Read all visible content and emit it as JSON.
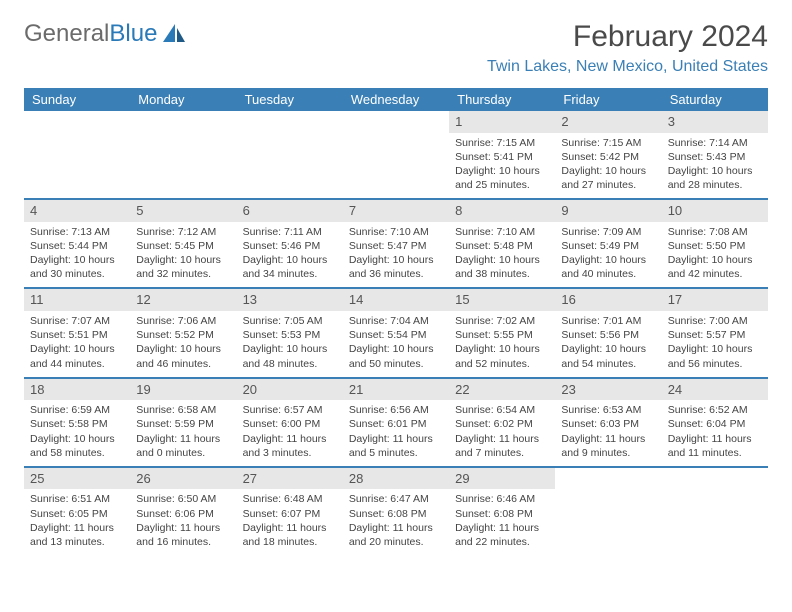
{
  "logo": {
    "text_gray": "General",
    "text_blue": "Blue"
  },
  "title": "February 2024",
  "location": "Twin Lakes, New Mexico, United States",
  "header_bg": "#3a7fb5",
  "border_color": "#3a7fb5",
  "daynum_bg": "#e7e7e7",
  "weekdays": [
    "Sunday",
    "Monday",
    "Tuesday",
    "Wednesday",
    "Thursday",
    "Friday",
    "Saturday"
  ],
  "weeks": [
    [
      {
        "n": "",
        "lines": []
      },
      {
        "n": "",
        "lines": []
      },
      {
        "n": "",
        "lines": []
      },
      {
        "n": "",
        "lines": []
      },
      {
        "n": "1",
        "lines": [
          "Sunrise: 7:15 AM",
          "Sunset: 5:41 PM",
          "Daylight: 10 hours and 25 minutes."
        ]
      },
      {
        "n": "2",
        "lines": [
          "Sunrise: 7:15 AM",
          "Sunset: 5:42 PM",
          "Daylight: 10 hours and 27 minutes."
        ]
      },
      {
        "n": "3",
        "lines": [
          "Sunrise: 7:14 AM",
          "Sunset: 5:43 PM",
          "Daylight: 10 hours and 28 minutes."
        ]
      }
    ],
    [
      {
        "n": "4",
        "lines": [
          "Sunrise: 7:13 AM",
          "Sunset: 5:44 PM",
          "Daylight: 10 hours and 30 minutes."
        ]
      },
      {
        "n": "5",
        "lines": [
          "Sunrise: 7:12 AM",
          "Sunset: 5:45 PM",
          "Daylight: 10 hours and 32 minutes."
        ]
      },
      {
        "n": "6",
        "lines": [
          "Sunrise: 7:11 AM",
          "Sunset: 5:46 PM",
          "Daylight: 10 hours and 34 minutes."
        ]
      },
      {
        "n": "7",
        "lines": [
          "Sunrise: 7:10 AM",
          "Sunset: 5:47 PM",
          "Daylight: 10 hours and 36 minutes."
        ]
      },
      {
        "n": "8",
        "lines": [
          "Sunrise: 7:10 AM",
          "Sunset: 5:48 PM",
          "Daylight: 10 hours and 38 minutes."
        ]
      },
      {
        "n": "9",
        "lines": [
          "Sunrise: 7:09 AM",
          "Sunset: 5:49 PM",
          "Daylight: 10 hours and 40 minutes."
        ]
      },
      {
        "n": "10",
        "lines": [
          "Sunrise: 7:08 AM",
          "Sunset: 5:50 PM",
          "Daylight: 10 hours and 42 minutes."
        ]
      }
    ],
    [
      {
        "n": "11",
        "lines": [
          "Sunrise: 7:07 AM",
          "Sunset: 5:51 PM",
          "Daylight: 10 hours and 44 minutes."
        ]
      },
      {
        "n": "12",
        "lines": [
          "Sunrise: 7:06 AM",
          "Sunset: 5:52 PM",
          "Daylight: 10 hours and 46 minutes."
        ]
      },
      {
        "n": "13",
        "lines": [
          "Sunrise: 7:05 AM",
          "Sunset: 5:53 PM",
          "Daylight: 10 hours and 48 minutes."
        ]
      },
      {
        "n": "14",
        "lines": [
          "Sunrise: 7:04 AM",
          "Sunset: 5:54 PM",
          "Daylight: 10 hours and 50 minutes."
        ]
      },
      {
        "n": "15",
        "lines": [
          "Sunrise: 7:02 AM",
          "Sunset: 5:55 PM",
          "Daylight: 10 hours and 52 minutes."
        ]
      },
      {
        "n": "16",
        "lines": [
          "Sunrise: 7:01 AM",
          "Sunset: 5:56 PM",
          "Daylight: 10 hours and 54 minutes."
        ]
      },
      {
        "n": "17",
        "lines": [
          "Sunrise: 7:00 AM",
          "Sunset: 5:57 PM",
          "Daylight: 10 hours and 56 minutes."
        ]
      }
    ],
    [
      {
        "n": "18",
        "lines": [
          "Sunrise: 6:59 AM",
          "Sunset: 5:58 PM",
          "Daylight: 10 hours and 58 minutes."
        ]
      },
      {
        "n": "19",
        "lines": [
          "Sunrise: 6:58 AM",
          "Sunset: 5:59 PM",
          "Daylight: 11 hours and 0 minutes."
        ]
      },
      {
        "n": "20",
        "lines": [
          "Sunrise: 6:57 AM",
          "Sunset: 6:00 PM",
          "Daylight: 11 hours and 3 minutes."
        ]
      },
      {
        "n": "21",
        "lines": [
          "Sunrise: 6:56 AM",
          "Sunset: 6:01 PM",
          "Daylight: 11 hours and 5 minutes."
        ]
      },
      {
        "n": "22",
        "lines": [
          "Sunrise: 6:54 AM",
          "Sunset: 6:02 PM",
          "Daylight: 11 hours and 7 minutes."
        ]
      },
      {
        "n": "23",
        "lines": [
          "Sunrise: 6:53 AM",
          "Sunset: 6:03 PM",
          "Daylight: 11 hours and 9 minutes."
        ]
      },
      {
        "n": "24",
        "lines": [
          "Sunrise: 6:52 AM",
          "Sunset: 6:04 PM",
          "Daylight: 11 hours and 11 minutes."
        ]
      }
    ],
    [
      {
        "n": "25",
        "lines": [
          "Sunrise: 6:51 AM",
          "Sunset: 6:05 PM",
          "Daylight: 11 hours and 13 minutes."
        ]
      },
      {
        "n": "26",
        "lines": [
          "Sunrise: 6:50 AM",
          "Sunset: 6:06 PM",
          "Daylight: 11 hours and 16 minutes."
        ]
      },
      {
        "n": "27",
        "lines": [
          "Sunrise: 6:48 AM",
          "Sunset: 6:07 PM",
          "Daylight: 11 hours and 18 minutes."
        ]
      },
      {
        "n": "28",
        "lines": [
          "Sunrise: 6:47 AM",
          "Sunset: 6:08 PM",
          "Daylight: 11 hours and 20 minutes."
        ]
      },
      {
        "n": "29",
        "lines": [
          "Sunrise: 6:46 AM",
          "Sunset: 6:08 PM",
          "Daylight: 11 hours and 22 minutes."
        ]
      },
      {
        "n": "",
        "lines": []
      },
      {
        "n": "",
        "lines": []
      }
    ]
  ]
}
